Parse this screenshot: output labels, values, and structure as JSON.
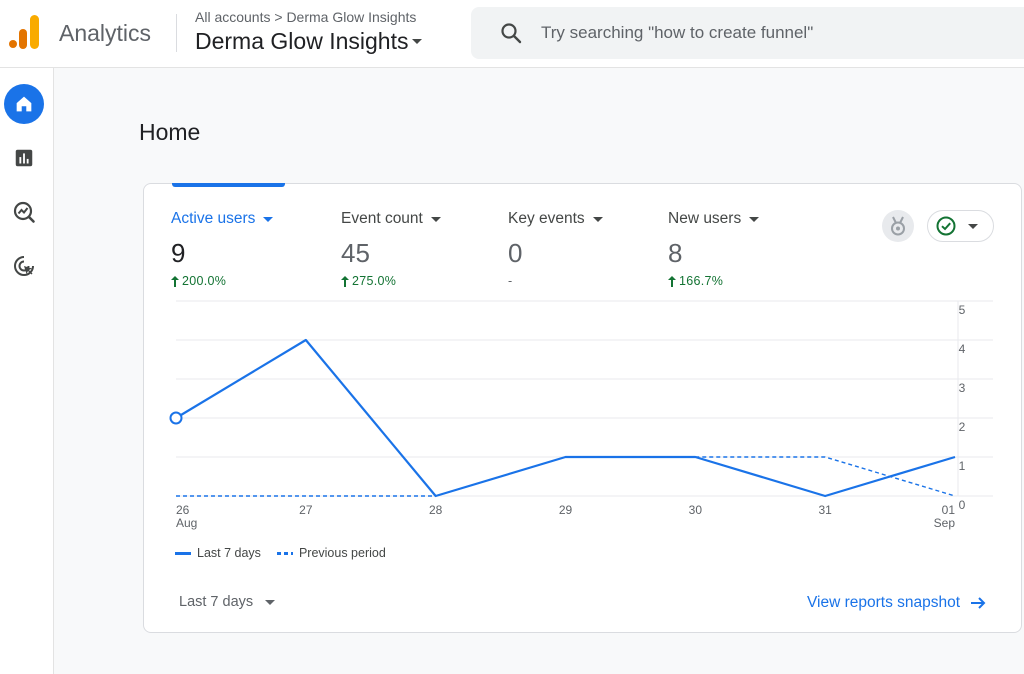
{
  "header": {
    "app_name": "Analytics",
    "breadcrumb": "All accounts > Derma Glow Insights",
    "property_name": "Derma Glow Insights",
    "search_placeholder": "Try searching \"how to create funnel\""
  },
  "sidenav": {
    "items": [
      {
        "icon": "home-icon",
        "active": true
      },
      {
        "icon": "reports-icon",
        "active": false
      },
      {
        "icon": "explore-icon",
        "active": false
      },
      {
        "icon": "advertising-icon",
        "active": false
      }
    ]
  },
  "page": {
    "title": "Home"
  },
  "metrics": [
    {
      "label": "Active users",
      "value": "9",
      "change": "200.0%",
      "trend": "up",
      "selected": true
    },
    {
      "label": "Event count",
      "value": "45",
      "change": "275.0%",
      "trend": "up",
      "selected": false
    },
    {
      "label": "Key events",
      "value": "0",
      "change": "-",
      "trend": "none",
      "selected": false
    },
    {
      "label": "New users",
      "value": "8",
      "change": "166.7%",
      "trend": "up",
      "selected": false
    }
  ],
  "chart_data": {
    "type": "line",
    "x_ticks": [
      {
        "day": "26",
        "month": "Aug"
      },
      {
        "day": "27",
        "month": ""
      },
      {
        "day": "28",
        "month": ""
      },
      {
        "day": "29",
        "month": ""
      },
      {
        "day": "30",
        "month": ""
      },
      {
        "day": "31",
        "month": ""
      },
      {
        "day": "01",
        "month": "Sep"
      }
    ],
    "ylim": [
      0,
      5
    ],
    "y_ticks": [
      0,
      1,
      2,
      3,
      4,
      5
    ],
    "series": [
      {
        "name": "Last 7 days",
        "style": "solid",
        "values": [
          2,
          4,
          0,
          1,
          1,
          0,
          1
        ]
      },
      {
        "name": "Previous period",
        "style": "dashed",
        "values": [
          0,
          0,
          0,
          1,
          1,
          1,
          0
        ]
      }
    ],
    "grid": true,
    "legend": "bottom-left",
    "color": "#1a73e8"
  },
  "footer": {
    "date_range": "Last 7 days",
    "snapshot_link": "View reports snapshot"
  },
  "colors": {
    "accent": "#1a73e8",
    "positive": "#137333",
    "logo_orange": "#f9ab00",
    "logo_dark_orange": "#e37400"
  }
}
